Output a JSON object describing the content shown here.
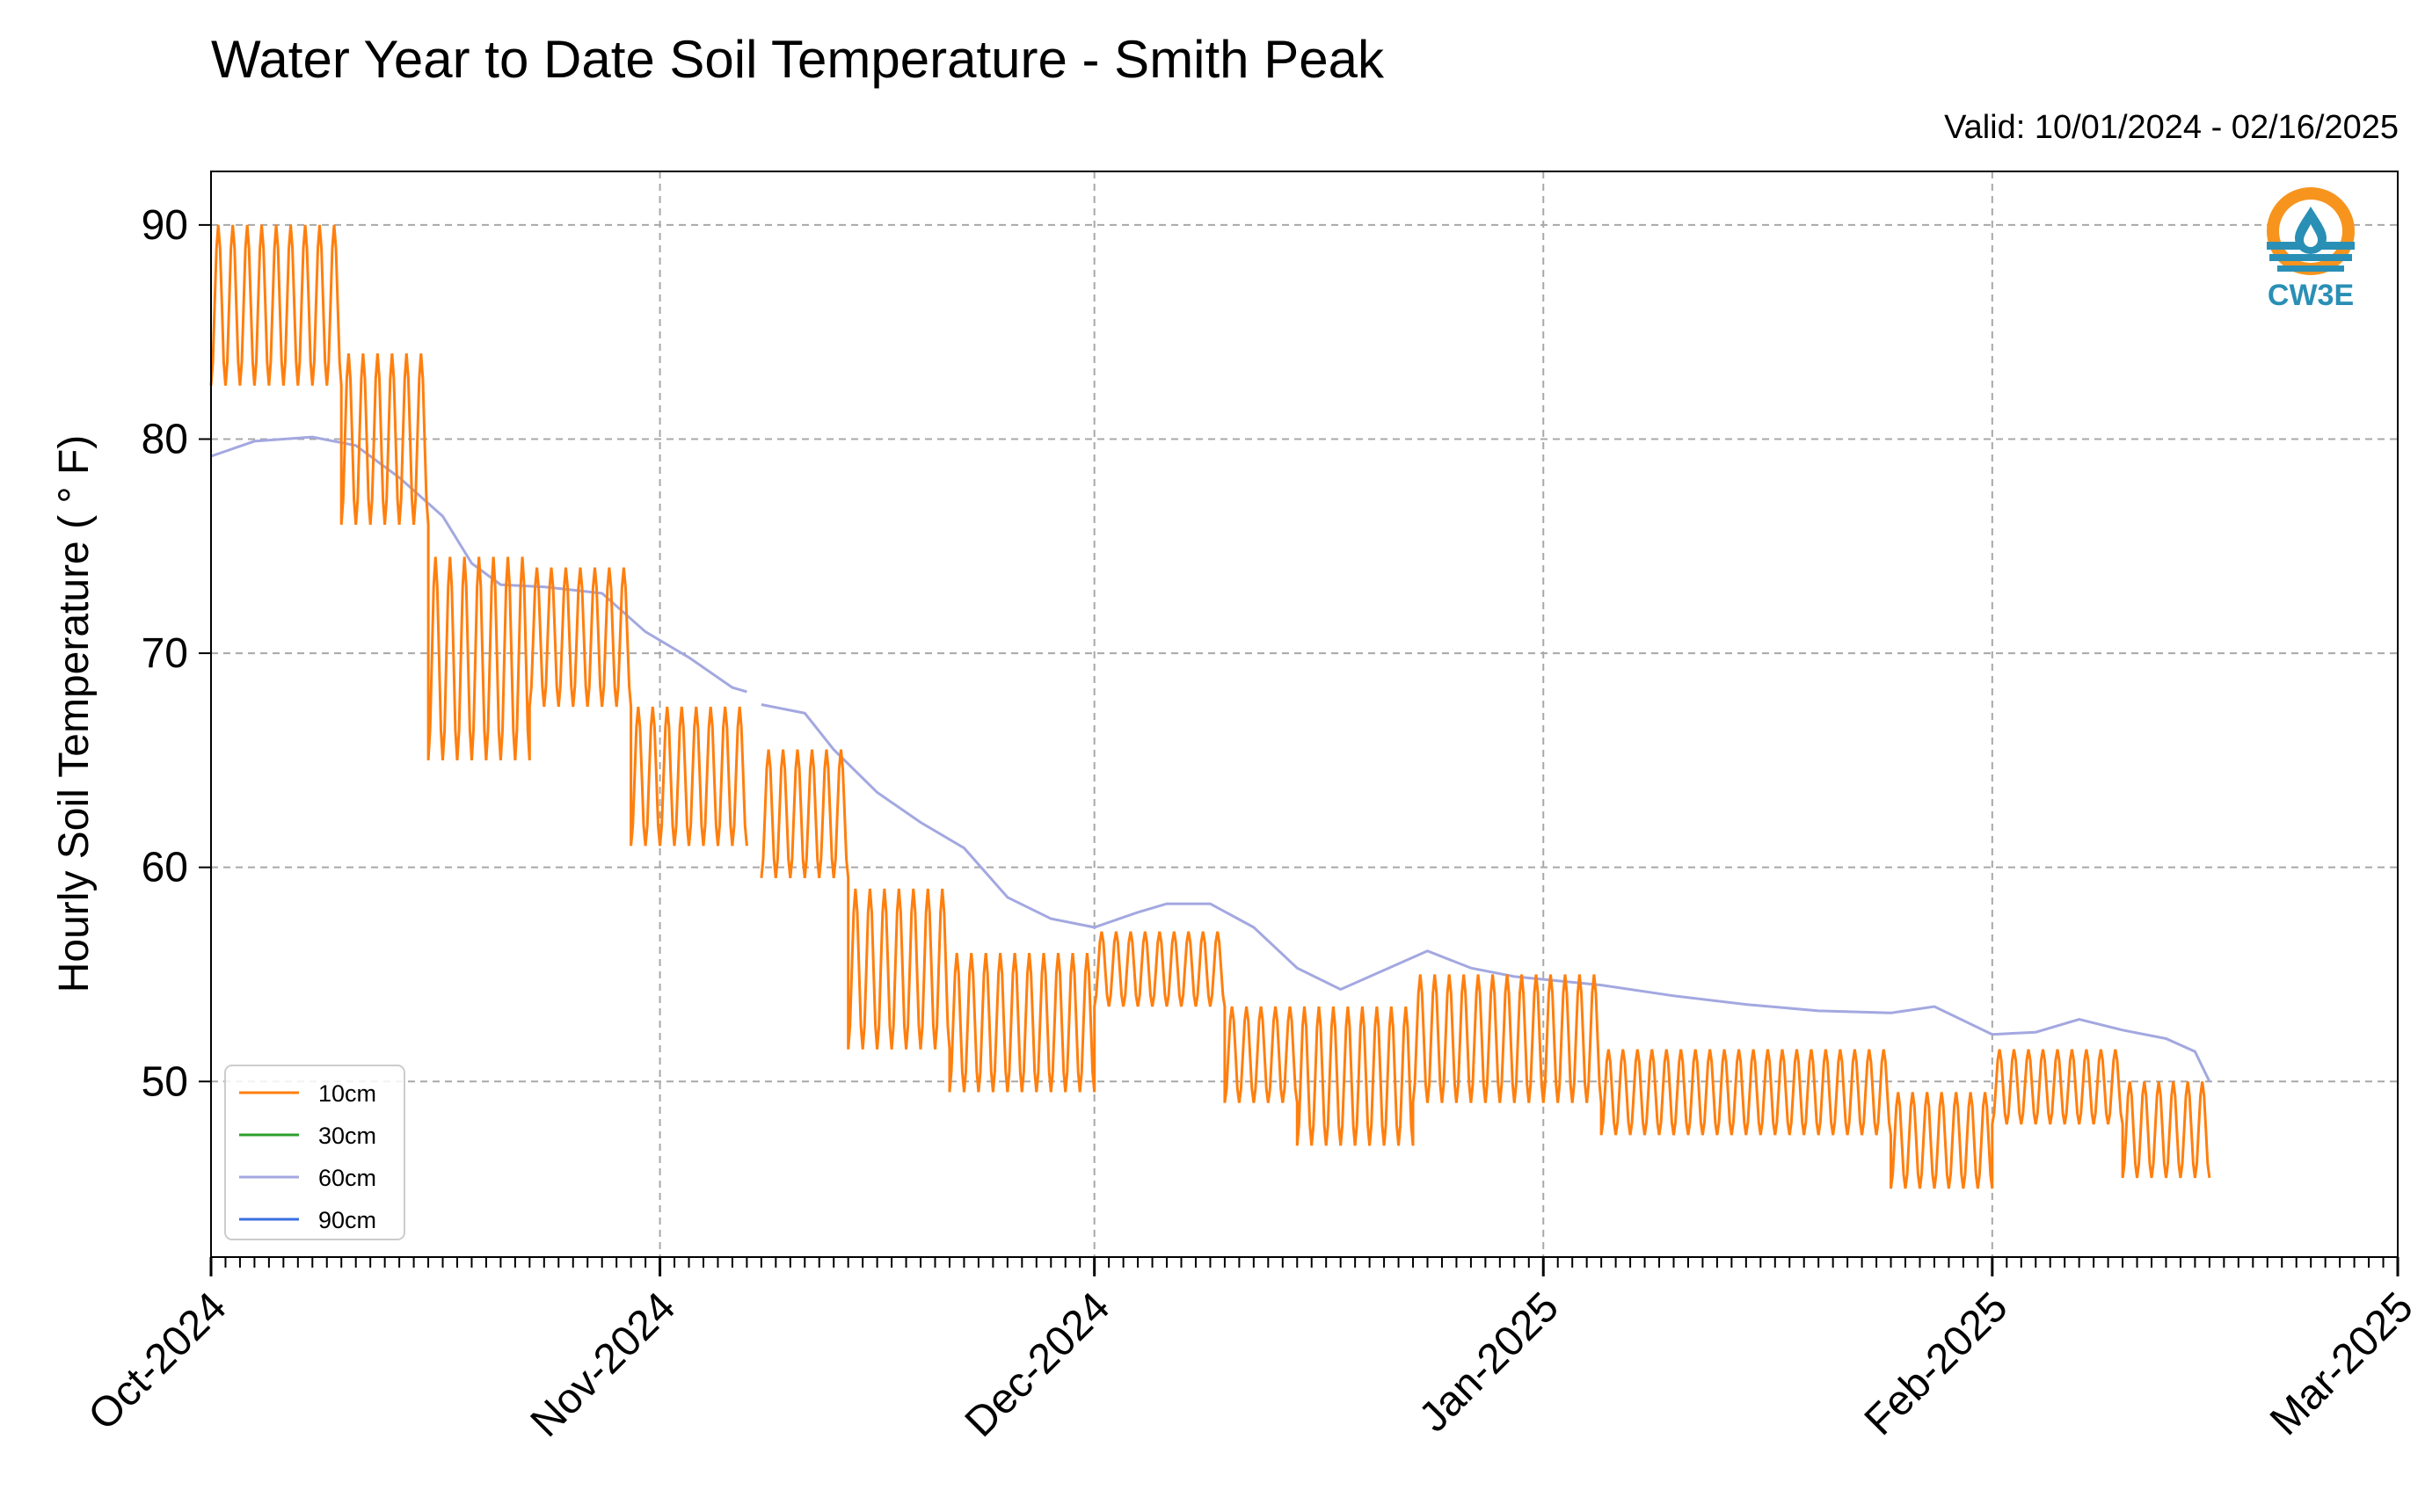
{
  "colors": {
    "10cm": "#ff7f0e",
    "30cm": "#2ca02c",
    "60cm": "#a3a8e0",
    "90cm": "#3b6fe0",
    "grid": "#a8a8a8",
    "logo_orange": "#f7941d",
    "logo_teal": "#2a8fb5"
  },
  "logo": {
    "text": "CW3E",
    "icon": "water-drop-logo-icon"
  },
  "chart_data": {
    "type": "line",
    "title": "Water Year to Date Soil Temperature - Smith Peak",
    "subtitle": "Valid: 10/01/2024 - 02/16/2025",
    "xlabel": "",
    "ylabel": "Hourly Soil Temperature ( ° F)",
    "x_tick_labels": [
      "Oct-2024",
      "Nov-2024",
      "Dec-2024",
      "Jan-2025",
      "Feb-2025",
      "Mar-2025"
    ],
    "x_tick_dates": [
      "2024-10-01",
      "2024-11-01",
      "2024-12-01",
      "2025-01-01",
      "2025-02-01",
      "2025-03-01"
    ],
    "xlim": [
      "2024-10-01",
      "2025-03-01"
    ],
    "y_ticks": [
      50,
      60,
      70,
      80,
      90
    ],
    "ylim": [
      41.8,
      92.5
    ],
    "grid": true,
    "legend_position": "bottom-left",
    "series": [
      {
        "name": "10cm",
        "description_by_period": [
          {
            "start": "2024-10-01",
            "end": "2024-10-10",
            "daily_min": 82.5,
            "daily_max": 90.0
          },
          {
            "start": "2024-10-10",
            "end": "2024-10-16",
            "daily_min": 76.0,
            "daily_max": 84.0
          },
          {
            "start": "2024-10-16",
            "end": "2024-10-23",
            "daily_min": 65.0,
            "daily_max": 74.5
          },
          {
            "start": "2024-10-23",
            "end": "2024-10-30",
            "daily_min": 67.5,
            "daily_max": 74.0
          },
          {
            "start": "2024-10-30",
            "end": "2024-11-07",
            "daily_min": 61.0,
            "daily_max": 67.5
          },
          {
            "start": "2024-11-08",
            "end": "2024-11-14",
            "daily_min": 59.5,
            "daily_max": 65.5
          },
          {
            "start": "2024-11-14",
            "end": "2024-11-21",
            "daily_min": 51.5,
            "daily_max": 59.0
          },
          {
            "start": "2024-11-21",
            "end": "2024-12-01",
            "daily_min": 49.5,
            "daily_max": 56.0
          },
          {
            "start": "2024-12-01",
            "end": "2024-12-10",
            "daily_min": 53.5,
            "daily_max": 57.0
          },
          {
            "start": "2024-12-10",
            "end": "2024-12-15",
            "daily_min": 49.0,
            "daily_max": 53.5
          },
          {
            "start": "2024-12-15",
            "end": "2024-12-23",
            "daily_min": 47.0,
            "daily_max": 53.5
          },
          {
            "start": "2024-12-23",
            "end": "2025-01-05",
            "daily_min": 49.0,
            "daily_max": 55.0
          },
          {
            "start": "2025-01-05",
            "end": "2025-01-25",
            "daily_min": 47.5,
            "daily_max": 51.5
          },
          {
            "start": "2025-01-25",
            "end": "2025-02-01",
            "daily_min": 45.0,
            "daily_max": 49.5
          },
          {
            "start": "2025-02-01",
            "end": "2025-02-10",
            "daily_min": 48.0,
            "daily_max": 51.5
          },
          {
            "start": "2025-02-10",
            "end": "2025-02-16",
            "daily_min": 45.5,
            "daily_max": 50.0
          }
        ],
        "gaps": [
          [
            "2024-11-07",
            "2024-11-08"
          ]
        ]
      },
      {
        "name": "30cm",
        "x": [],
        "y": []
      },
      {
        "name": "60cm",
        "x": [
          "2024-10-01",
          "2024-10-04",
          "2024-10-08",
          "2024-10-11",
          "2024-10-14",
          "2024-10-17",
          "2024-10-19",
          "2024-10-21",
          "2024-10-24",
          "2024-10-28",
          "2024-10-31",
          "2024-11-03",
          "2024-11-06",
          "2024-11-07",
          "2024-11-08",
          "2024-11-11",
          "2024-11-13",
          "2024-11-16",
          "2024-11-19",
          "2024-11-22",
          "2024-11-25",
          "2024-11-28",
          "2024-12-01",
          "2024-12-04",
          "2024-12-06",
          "2024-12-09",
          "2024-12-12",
          "2024-12-15",
          "2024-12-18",
          "2024-12-21",
          "2024-12-24",
          "2024-12-27",
          "2024-12-30",
          "2025-01-02",
          "2025-01-05",
          "2025-01-10",
          "2025-01-15",
          "2025-01-20",
          "2025-01-25",
          "2025-01-28",
          "2025-02-01",
          "2025-02-04",
          "2025-02-07",
          "2025-02-10",
          "2025-02-13",
          "2025-02-15",
          "2025-02-16"
        ],
        "y": [
          79.2,
          79.9,
          80.1,
          79.7,
          78.2,
          76.4,
          74.2,
          73.2,
          73.1,
          72.8,
          71.0,
          69.8,
          68.4,
          68.2,
          67.6,
          67.2,
          65.5,
          63.5,
          62.1,
          60.9,
          58.6,
          57.6,
          57.2,
          57.9,
          58.3,
          58.3,
          57.2,
          55.3,
          54.3,
          55.2,
          56.1,
          55.3,
          54.9,
          54.7,
          54.5,
          54.0,
          53.6,
          53.3,
          53.2,
          53.5,
          52.2,
          52.3,
          52.9,
          52.4,
          52.0,
          51.4,
          50.0
        ]
      },
      {
        "name": "90cm",
        "x": [],
        "y": []
      }
    ]
  }
}
